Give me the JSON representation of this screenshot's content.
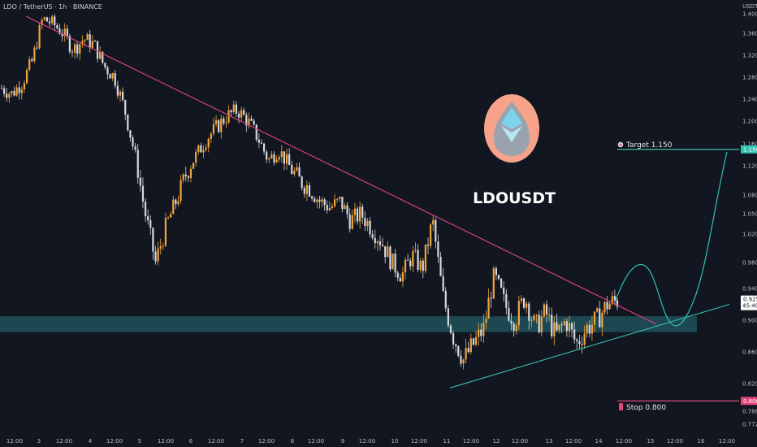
{
  "chart": {
    "ticker": "LDO / TetherUS · 1h · BINANCE",
    "currency": "USDT",
    "center_title": "LDOUSDT",
    "target_label": "Target 1.150",
    "stop_label": "Stop 0.800",
    "target_tag": "1.150",
    "stop_tag": "0.800",
    "price_tag": "0.925",
    "countdown": "45:40",
    "logo_icon": "lido-drop-logo-icon",
    "target_icon": "target-dart-icon",
    "stop_icon": "stop-money-icon",
    "colors": {
      "background": "#121620",
      "candle_up": "#f0a53a",
      "candle_down": "#d6d8de",
      "trendline_resistance": "#e0457b",
      "trendline_support": "#3bbfa6",
      "zone": "#1f4e56",
      "target_line": "#3bbfa6",
      "stop_line": "#e0457b",
      "projection": "#2fc3b0"
    }
  },
  "chart_data": {
    "type": "candlestick",
    "title": "LDOUSDT",
    "ylabel": "USDT",
    "y_ticks": [
      "1.400",
      "1.360",
      "1.320",
      "1.280",
      "1.240",
      "1.200",
      "1.160",
      "1.120",
      "1.080",
      "1.050",
      "1.020",
      "0.980",
      "0.940",
      "0.900",
      "0.860",
      "0.820",
      "0.788",
      "0.772"
    ],
    "x_ticks": [
      "12:00",
      "3",
      "12:00",
      "4",
      "12:00",
      "5",
      "12:00",
      "6",
      "12:00",
      "7",
      "12:00",
      "8",
      "12:00",
      "9",
      "12:00",
      "10",
      "12:00",
      "11",
      "12:00",
      "12",
      "12:00",
      "13",
      "12:00",
      "14",
      "12:00",
      "15",
      "12:00",
      "16",
      "12:00"
    ],
    "close_path": [
      1.26,
      1.25,
      1.27,
      1.31,
      1.39,
      1.38,
      1.36,
      1.33,
      1.35,
      1.34,
      1.3,
      1.28,
      1.22,
      1.14,
      1.05,
      0.98,
      1.03,
      1.07,
      1.11,
      1.14,
      1.17,
      1.19,
      1.21,
      1.22,
      1.2,
      1.17,
      1.13,
      1.15,
      1.12,
      1.1,
      1.09,
      1.07,
      1.06,
      1.07,
      1.04,
      1.05,
      1.03,
      1.01,
      0.98,
      0.96,
      0.99,
      0.97,
      1.04,
      0.93,
      0.88,
      0.85,
      0.87,
      0.89,
      0.96,
      0.92,
      0.9,
      0.93,
      0.89,
      0.91,
      0.88,
      0.9,
      0.87,
      0.89,
      0.9,
      0.92,
      0.925
    ],
    "levels": [
      {
        "name": "target",
        "value": 1.15
      },
      {
        "name": "stop",
        "value": 0.8
      }
    ],
    "zone": [
      0.885,
      0.905
    ],
    "last_price": 0.925,
    "trendline_resistance": [
      {
        "x": "2 12:00",
        "y": 1.395
      },
      {
        "x": "15 00:00",
        "y": 0.895
      }
    ],
    "trendline_support": [
      {
        "x": "11 00:00",
        "y": 0.815
      },
      {
        "x": "16 12:00",
        "y": 0.92
      }
    ],
    "projection_path": [
      0.925,
      0.98,
      0.93,
      0.895,
      0.95,
      1.06,
      1.15
    ]
  }
}
